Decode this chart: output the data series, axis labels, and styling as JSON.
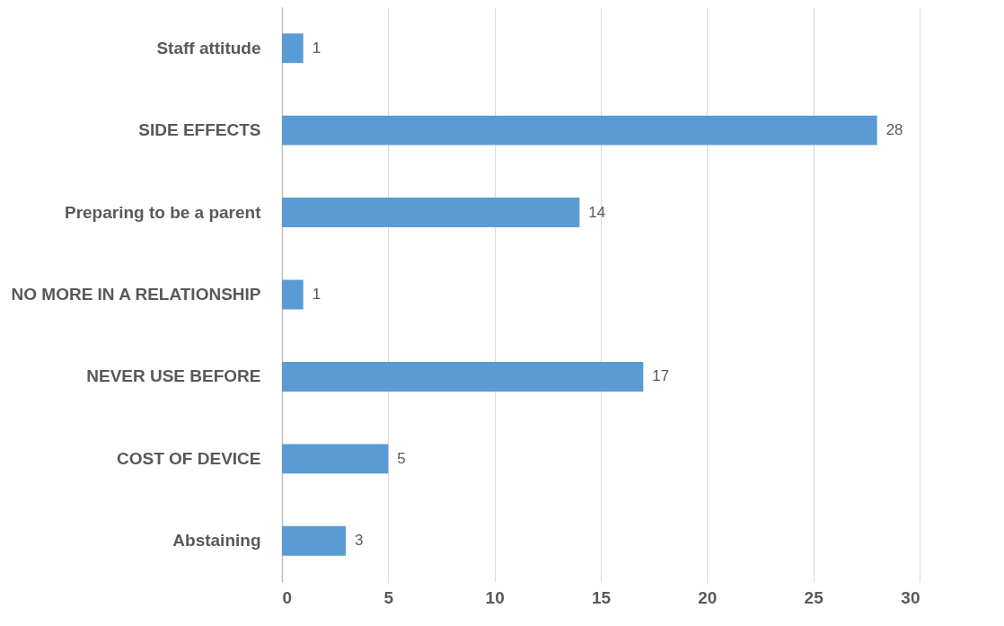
{
  "chart_data": {
    "type": "bar",
    "orientation": "horizontal",
    "categories": [
      "Staff attitude",
      "SIDE EFFECTS",
      "Preparing to be a parent",
      "NO MORE IN A RELATIONSHIP",
      "NEVER USE BEFORE",
      "COST OF DEVICE",
      "Abstaining"
    ],
    "values": [
      1,
      28,
      14,
      1,
      17,
      5,
      3
    ],
    "color": "#5b9bd5",
    "xlim": [
      0,
      30
    ],
    "xticks": [
      0,
      5,
      10,
      15,
      20,
      25,
      30
    ],
    "grid": "x",
    "data_labels": true
  }
}
